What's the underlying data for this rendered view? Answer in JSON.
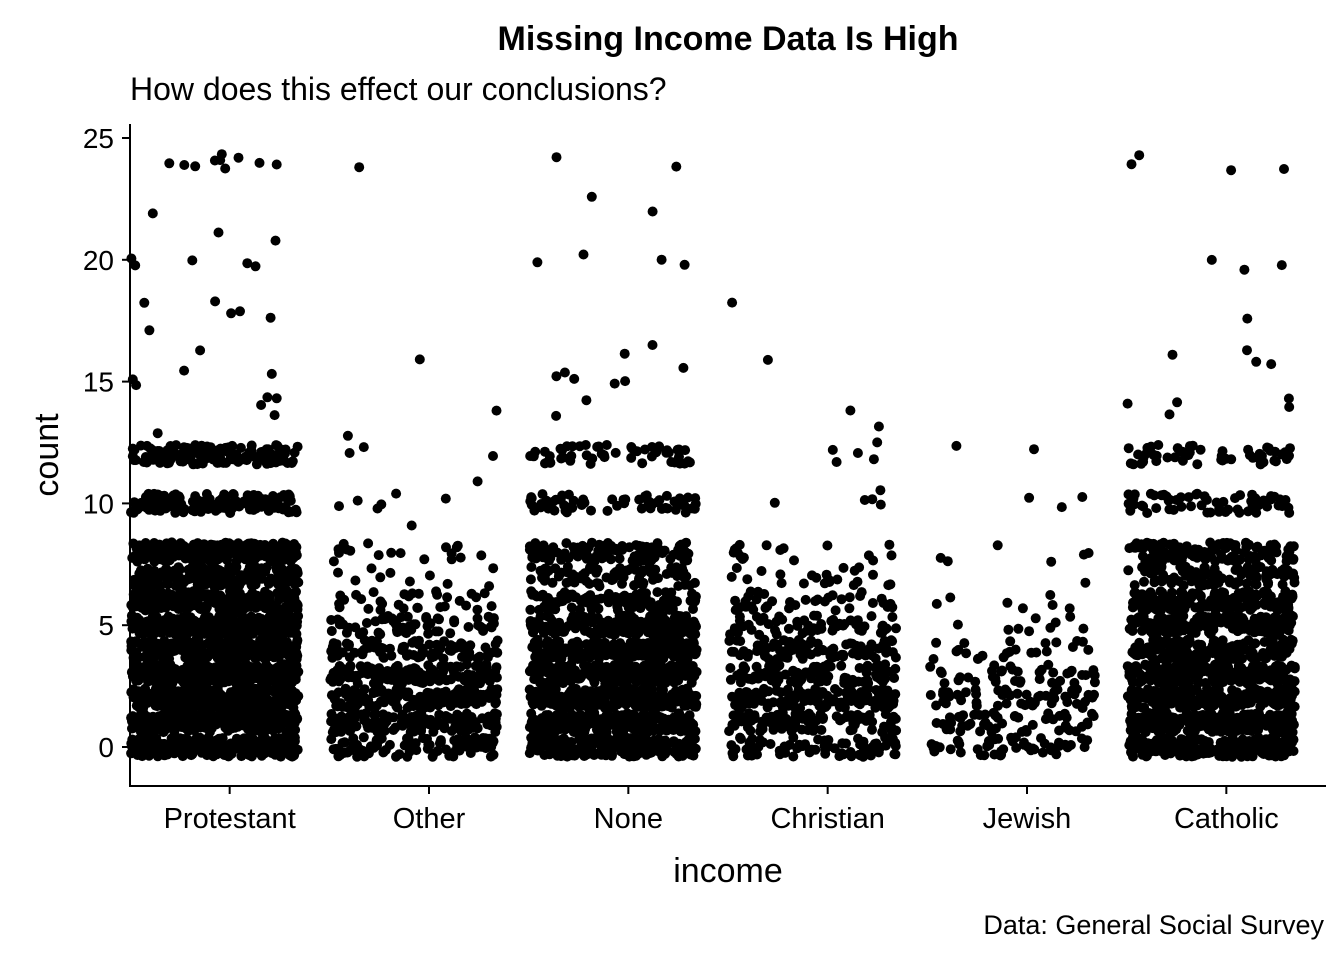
{
  "chart_data": {
    "type": "scatter",
    "jitter": true,
    "title": "Missing Income Data Is High",
    "subtitle": "How does this effect our conclusions?",
    "caption": "Data: General Social Survey",
    "xlabel": "income",
    "ylabel": "count",
    "categories": [
      "Protestant",
      "Other",
      "None",
      "Christian",
      "Jewish",
      "Catholic"
    ],
    "yticks": [
      0,
      5,
      10,
      15,
      20,
      25
    ],
    "ylim": [
      -1.6,
      25.5
    ],
    "grid": false,
    "legend": "none",
    "point_color": "#000000",
    "series": [
      {
        "category": "Protestant",
        "point_count": 2600,
        "dense_band": [
          0,
          6
        ],
        "value_distribution": {
          "0": 0.09,
          "1": 0.11,
          "2": 0.11,
          "3": 0.1,
          "4": 0.1,
          "5": 0.09,
          "6": 0.08,
          "7": 0.06,
          "8": 0.08,
          "10": 0.06,
          "12": 0.05
        },
        "outliers": [
          13,
          13.5,
          14,
          14.2,
          14.5,
          15,
          15,
          15.2,
          15.5,
          16.3,
          17,
          17.5,
          17.7,
          18,
          18.2,
          18.3,
          19.7,
          19.8,
          20,
          20,
          20.1,
          20.7,
          21.1,
          21.8,
          23.6,
          23.8,
          23.9,
          24,
          24,
          24,
          24,
          24.1,
          24.2,
          24.2
        ]
      },
      {
        "category": "Other",
        "point_count": 720,
        "dense_band": [
          0,
          4
        ],
        "value_distribution": {
          "0": 0.14,
          "1": 0.2,
          "2": 0.22,
          "3": 0.17,
          "4": 0.12,
          "5": 0.07,
          "6": 0.04,
          "7": 0.015,
          "8": 0.015
        },
        "outliers": [
          9.2,
          9.9,
          9.9,
          10,
          10,
          10.3,
          10.4,
          11,
          12,
          12,
          12.3,
          12.9,
          13.7,
          16,
          23.8
        ]
      },
      {
        "category": "None",
        "point_count": 1750,
        "dense_band": [
          0,
          5
        ],
        "value_distribution": {
          "0": 0.12,
          "1": 0.14,
          "2": 0.14,
          "3": 0.13,
          "4": 0.12,
          "5": 0.1,
          "6": 0.07,
          "7": 0.05,
          "8": 0.07,
          "10": 0.03,
          "12": 0.03
        },
        "outliers": [
          13.7,
          14.2,
          14.8,
          15,
          15.1,
          15.2,
          15.3,
          15.5,
          16,
          16.4,
          19.8,
          19.8,
          20,
          20.2,
          21.9,
          22.6,
          23.9,
          24.2
        ]
      },
      {
        "category": "Christian",
        "point_count": 640,
        "dense_band": [
          0,
          5
        ],
        "value_distribution": {
          "0": 0.12,
          "1": 0.18,
          "2": 0.2,
          "3": 0.16,
          "4": 0.13,
          "5": 0.1,
          "6": 0.06,
          "7": 0.025,
          "8": 0.025
        },
        "outliers": [
          10,
          10,
          10.1,
          10.2,
          10.4,
          11.7,
          11.8,
          12.2,
          12.2,
          12.4,
          13.3,
          13.9,
          16,
          18.2
        ]
      },
      {
        "category": "Jewish",
        "point_count": 230,
        "dense_band": [
          0,
          4
        ],
        "value_distribution": {
          "0": 0.16,
          "1": 0.22,
          "2": 0.24,
          "3": 0.18,
          "4": 0.12,
          "5": 0.04,
          "6": 0.02,
          "7": 0.01,
          "8": 0.01
        },
        "outliers": [
          7.9,
          8,
          9.9,
          10.2,
          10.4,
          12.1,
          12.4
        ]
      },
      {
        "category": "Catholic",
        "point_count": 1700,
        "dense_band": [
          0,
          5
        ],
        "value_distribution": {
          "0": 0.1,
          "1": 0.13,
          "2": 0.13,
          "3": 0.12,
          "4": 0.12,
          "5": 0.1,
          "6": 0.1,
          "7": 0.05,
          "8": 0.08,
          "10": 0.04,
          "12": 0.03
        },
        "outliers": [
          13.6,
          14,
          14.2,
          14.2,
          14.3,
          15.7,
          15.7,
          16.2,
          16.2,
          17.7,
          19.7,
          19.9,
          20,
          23.8,
          23.8,
          23.8,
          24.2
        ]
      }
    ]
  }
}
